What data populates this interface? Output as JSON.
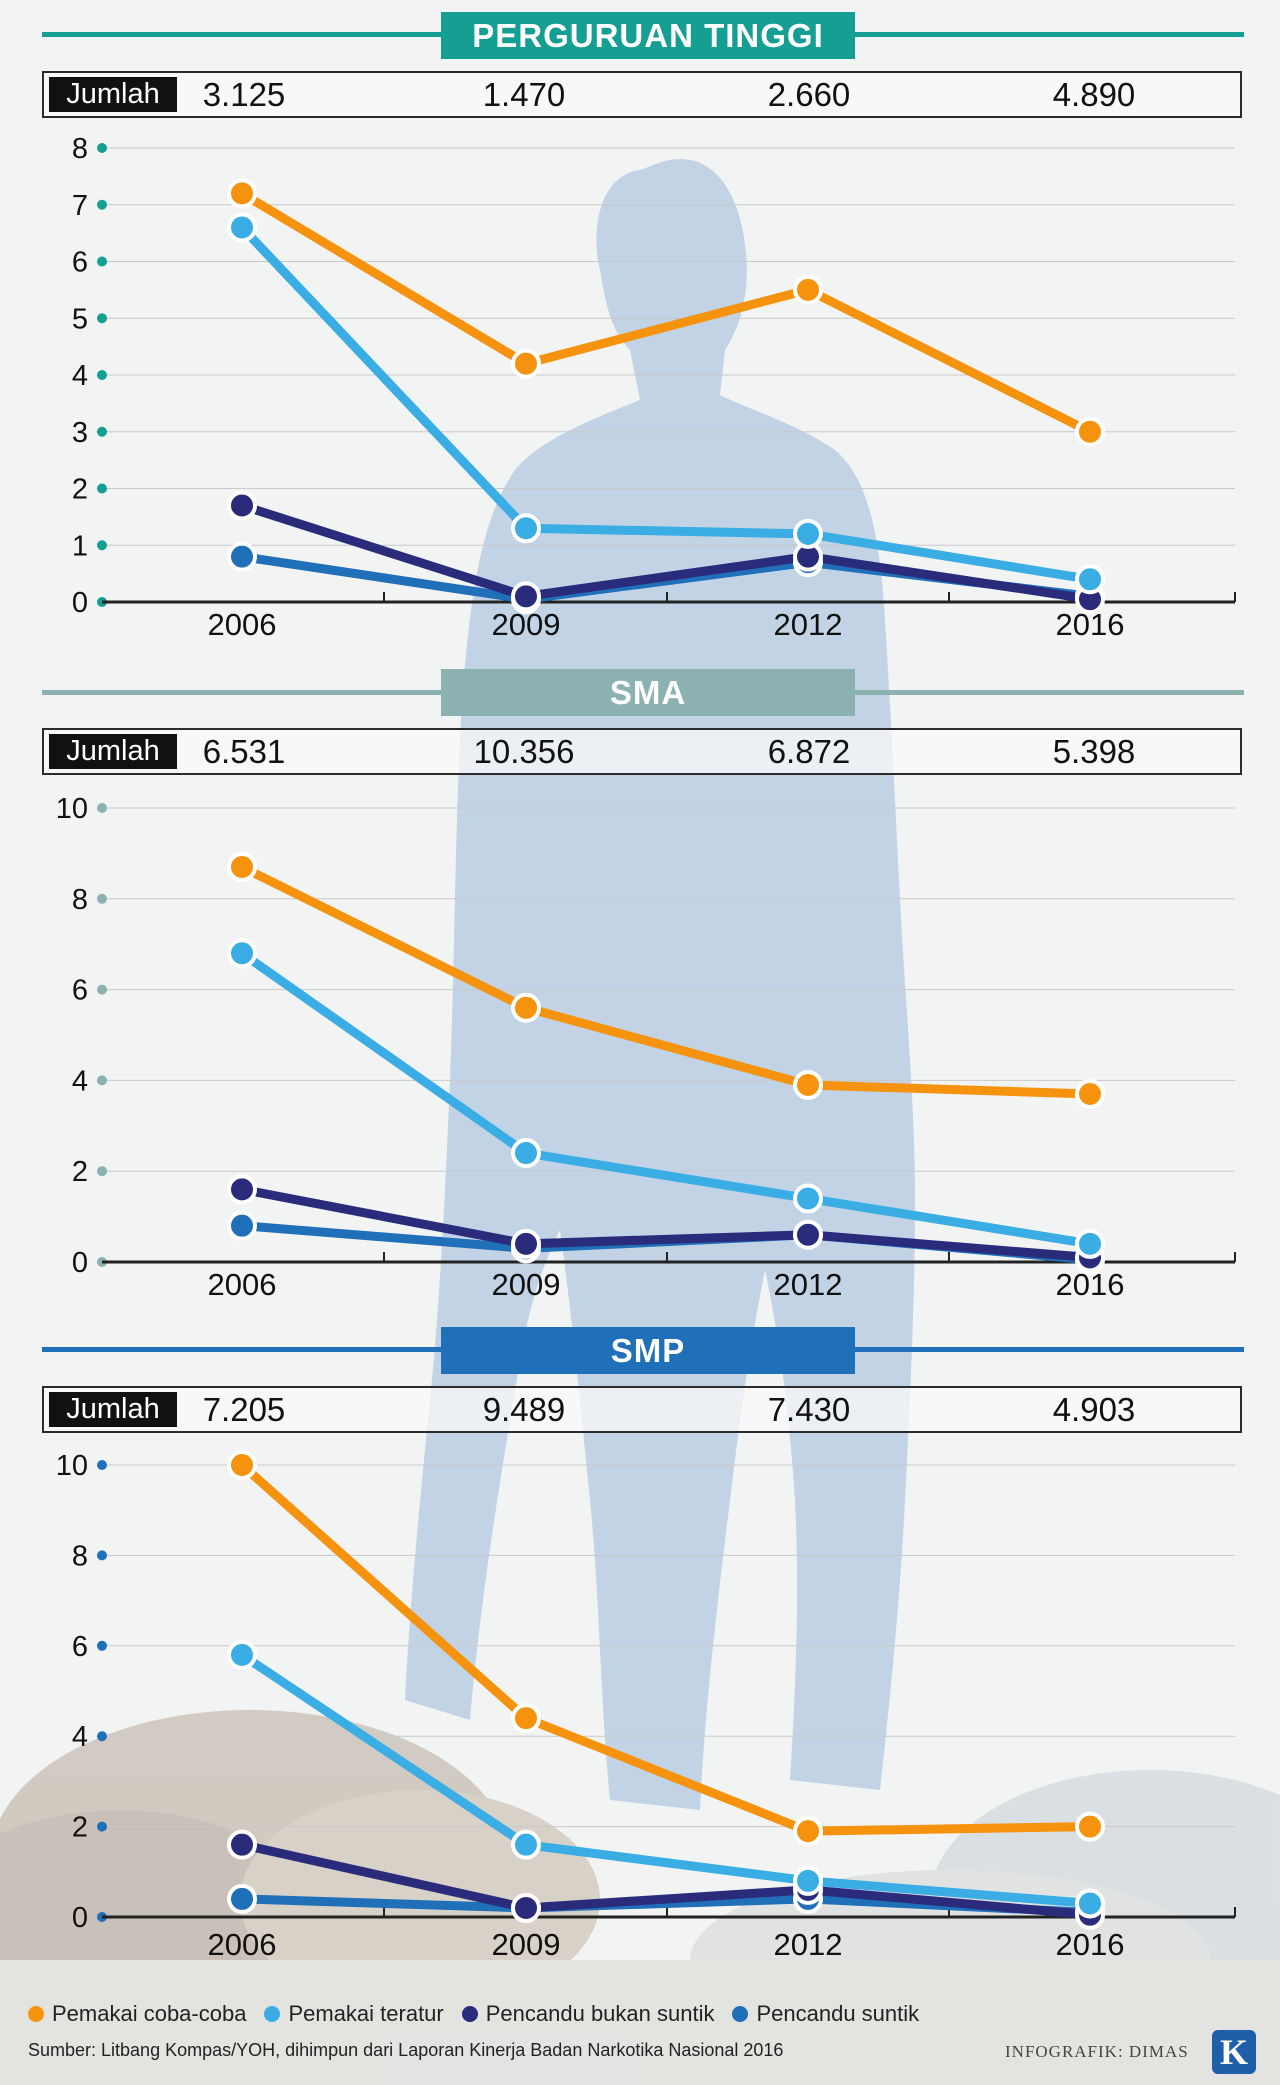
{
  "colors": {
    "pemakai_coba_coba": "#f5930f",
    "pemakai_teratur": "#3aade4",
    "pencandu_bukan_suntik": "#2b2b7c",
    "pencandu_suntik": "#1f6fb9",
    "pt_accent": "#159f93",
    "sma_accent": "#8bb1b0",
    "smp_accent": "#1f6fb9"
  },
  "legend": [
    {
      "label": "Pemakai coba-coba",
      "color": "#f5930f"
    },
    {
      "label": "Pemakai teratur",
      "color": "#3aade4"
    },
    {
      "label": "Pencandu bukan suntik",
      "color": "#2b2b7c"
    },
    {
      "label": "Pencandu suntik",
      "color": "#1f6fb9"
    }
  ],
  "jumlah_label": "Jumlah",
  "source": "Sumber: Litbang Kompas/YOH, dihimpun dari Laporan Kinerja Badan Narkotika Nasional 2016",
  "credit": "INFOGRAFIK: DIMAS",
  "logo": "K",
  "chart_data": [
    {
      "type": "line",
      "title": "PERGURUAN TINGGI",
      "jumlah": [
        "3.125",
        "1.470",
        "2.660",
        "4.890"
      ],
      "categories": [
        "2006",
        "2009",
        "2012",
        "2016"
      ],
      "yticks": [
        "0",
        "1",
        "2",
        "3",
        "4",
        "5",
        "6",
        "7",
        "8"
      ],
      "ylim": [
        0,
        8
      ],
      "grid": true,
      "series": [
        {
          "name": "Pemakai coba-coba",
          "values": [
            7.2,
            4.2,
            5.5,
            3.0
          ]
        },
        {
          "name": "Pemakai teratur",
          "values": [
            6.6,
            1.3,
            1.2,
            0.4
          ]
        },
        {
          "name": "Pencandu bukan suntik",
          "values": [
            1.7,
            0.1,
            0.8,
            0.05
          ]
        },
        {
          "name": "Pencandu suntik",
          "values": [
            0.8,
            0.05,
            0.7,
            0.1
          ]
        }
      ]
    },
    {
      "type": "line",
      "title": "SMA",
      "jumlah": [
        "6.531",
        "10.356",
        "6.872",
        "5.398"
      ],
      "categories": [
        "2006",
        "2009",
        "2012",
        "2016"
      ],
      "yticks": [
        "0",
        "2",
        "4",
        "6",
        "8",
        "10"
      ],
      "ylim": [
        0,
        10
      ],
      "grid": true,
      "series": [
        {
          "name": "Pemakai coba-coba",
          "values": [
            8.7,
            5.6,
            3.9,
            3.7
          ]
        },
        {
          "name": "Pemakai teratur",
          "values": [
            6.8,
            2.4,
            1.4,
            0.4
          ]
        },
        {
          "name": "Pencandu bukan suntik",
          "values": [
            1.6,
            0.4,
            0.6,
            0.1
          ]
        },
        {
          "name": "Pencandu suntik",
          "values": [
            0.8,
            0.3,
            0.6,
            0.05
          ]
        }
      ]
    },
    {
      "type": "line",
      "title": "SMP",
      "jumlah": [
        "7.205",
        "9.489",
        "7.430",
        "4.903"
      ],
      "categories": [
        "2006",
        "2009",
        "2012",
        "2016"
      ],
      "yticks": [
        "0",
        "2",
        "4",
        "6",
        "8",
        "10"
      ],
      "ylim": [
        0,
        10
      ],
      "grid": true,
      "series": [
        {
          "name": "Pemakai coba-coba",
          "values": [
            10.0,
            4.4,
            1.9,
            2.0
          ]
        },
        {
          "name": "Pemakai teratur",
          "values": [
            5.8,
            1.6,
            0.8,
            0.3
          ]
        },
        {
          "name": "Pencandu bukan suntik",
          "values": [
            1.6,
            0.2,
            0.6,
            0.05
          ]
        },
        {
          "name": "Pencandu suntik",
          "values": [
            0.4,
            0.2,
            0.4,
            0.1
          ]
        }
      ]
    }
  ]
}
